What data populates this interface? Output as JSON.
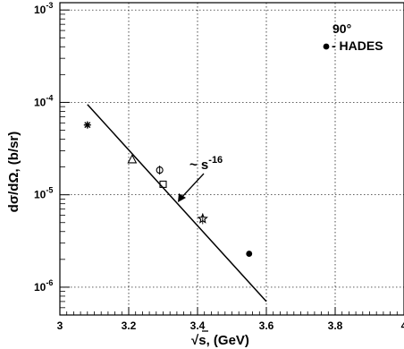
{
  "chart_data": {
    "type": "scatter",
    "xlabel": "√s, (GeV)",
    "ylabel": "dσ/dΩ, (b/sr)",
    "xlim": [
      3,
      4
    ],
    "ylim": [
      5e-07,
      0.0012
    ],
    "y_scale": "log",
    "grid": true,
    "x_ticks": [
      "3",
      "3.2",
      "3.4",
      "3.6",
      "3.8",
      "4"
    ],
    "y_ticks": [
      {
        "value": 0.001,
        "base": "10",
        "exp": "-3"
      },
      {
        "value": 0.0001,
        "base": "10",
        "exp": "-4"
      },
      {
        "value": 1e-05,
        "base": "10",
        "exp": "-5"
      },
      {
        "value": 1e-06,
        "base": "10",
        "exp": "-6"
      }
    ],
    "series": [
      {
        "marker": "asterisk",
        "points": [
          {
            "x": 3.08,
            "y": 5.7e-05
          }
        ]
      },
      {
        "marker": "triangle",
        "points": [
          {
            "x": 3.21,
            "y": 2.4e-05
          }
        ]
      },
      {
        "marker": "circle-bar",
        "points": [
          {
            "x": 3.29,
            "y": 1.85e-05
          }
        ]
      },
      {
        "marker": "square",
        "points": [
          {
            "x": 3.3,
            "y": 1.3e-05
          }
        ]
      },
      {
        "marker": "star",
        "points": [
          {
            "x": 3.415,
            "y": 5.5e-06
          }
        ]
      },
      {
        "marker": "filled-circle",
        "name": "HADES",
        "points": [
          {
            "x": 3.55,
            "y": 2.3e-06
          }
        ]
      }
    ],
    "fit_line": {
      "label_base": "~ s",
      "label_exp": "-16",
      "points": [
        {
          "x": 3.08,
          "y": 9.5e-05
        },
        {
          "x": 3.6,
          "y": 7e-07
        }
      ]
    },
    "legend": {
      "title": "90°",
      "items": [
        {
          "marker": "filled-circle",
          "label": "- HADES"
        }
      ],
      "placement": "top-right"
    }
  }
}
